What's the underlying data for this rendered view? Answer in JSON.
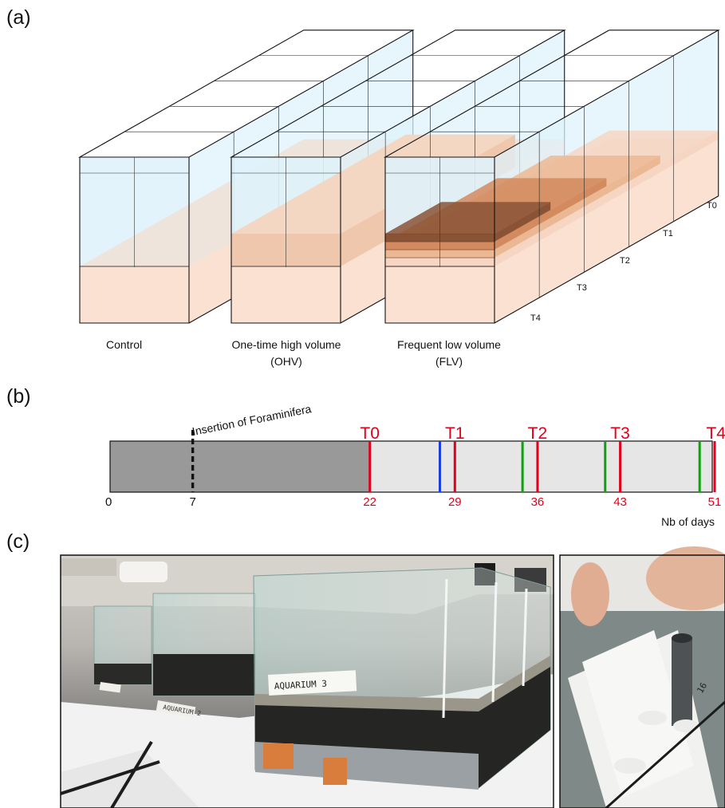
{
  "panels": {
    "a": {
      "label": "(a)"
    },
    "b": {
      "label": "(b)"
    },
    "c": {
      "label": "(c)"
    }
  },
  "tanks": [
    {
      "id": "control",
      "label_line1": "Control",
      "label_line2": ""
    },
    {
      "id": "ohv",
      "label_line1": "One-time high volume",
      "label_line2": "(OHV)"
    },
    {
      "id": "flv",
      "label_line1": "Frequent low volume",
      "label_line2": "(FLV)"
    }
  ],
  "sampling_labels": [
    "T0",
    "T1",
    "T2",
    "T3",
    "T4"
  ],
  "timeline": {
    "insertion_label": "Insertion of Foraminifera",
    "axis_label": "Nb of days",
    "start_day": 0,
    "end_day": 51,
    "acclimation_end_day": 22,
    "insertion_day": 7,
    "day_ticks": [
      {
        "day": 0,
        "label": "0",
        "color": "#111111"
      },
      {
        "day": 7,
        "label": "7",
        "color": "#111111"
      },
      {
        "day": 22,
        "label": "22",
        "color": "#e3001b"
      },
      {
        "day": 29,
        "label": "29",
        "color": "#e3001b"
      },
      {
        "day": 36,
        "label": "36",
        "color": "#e3001b"
      },
      {
        "day": 43,
        "label": "43",
        "color": "#e3001b"
      },
      {
        "day": 51,
        "label": "51",
        "color": "#e3001b"
      }
    ],
    "sampling": [
      {
        "label": "T0",
        "day": 22
      },
      {
        "label": "T1",
        "day": 29
      },
      {
        "label": "T2",
        "day": 36
      },
      {
        "label": "T3",
        "day": 43
      },
      {
        "label": "T4",
        "day": 51
      }
    ],
    "green_events_days": [
      35,
      42,
      50
    ],
    "blue_events_days": [
      28
    ],
    "colors": {
      "acclimation": "#999999",
      "experiment": "#e6e6e6",
      "sampling": "#e3001b",
      "green": "#12a012",
      "blue": "#1a3fe0"
    }
  },
  "photos": {
    "main_labels": [
      "AQUARIUM 3",
      "AQUARIUM 2"
    ],
    "side_label": "16"
  },
  "colors": {
    "water": "#dff2fb",
    "sediment": "#fbe1d1",
    "deposit_dark": "#8a5336",
    "deposit_mid": "#d28a5e",
    "deposit_light": "#ebb894"
  }
}
